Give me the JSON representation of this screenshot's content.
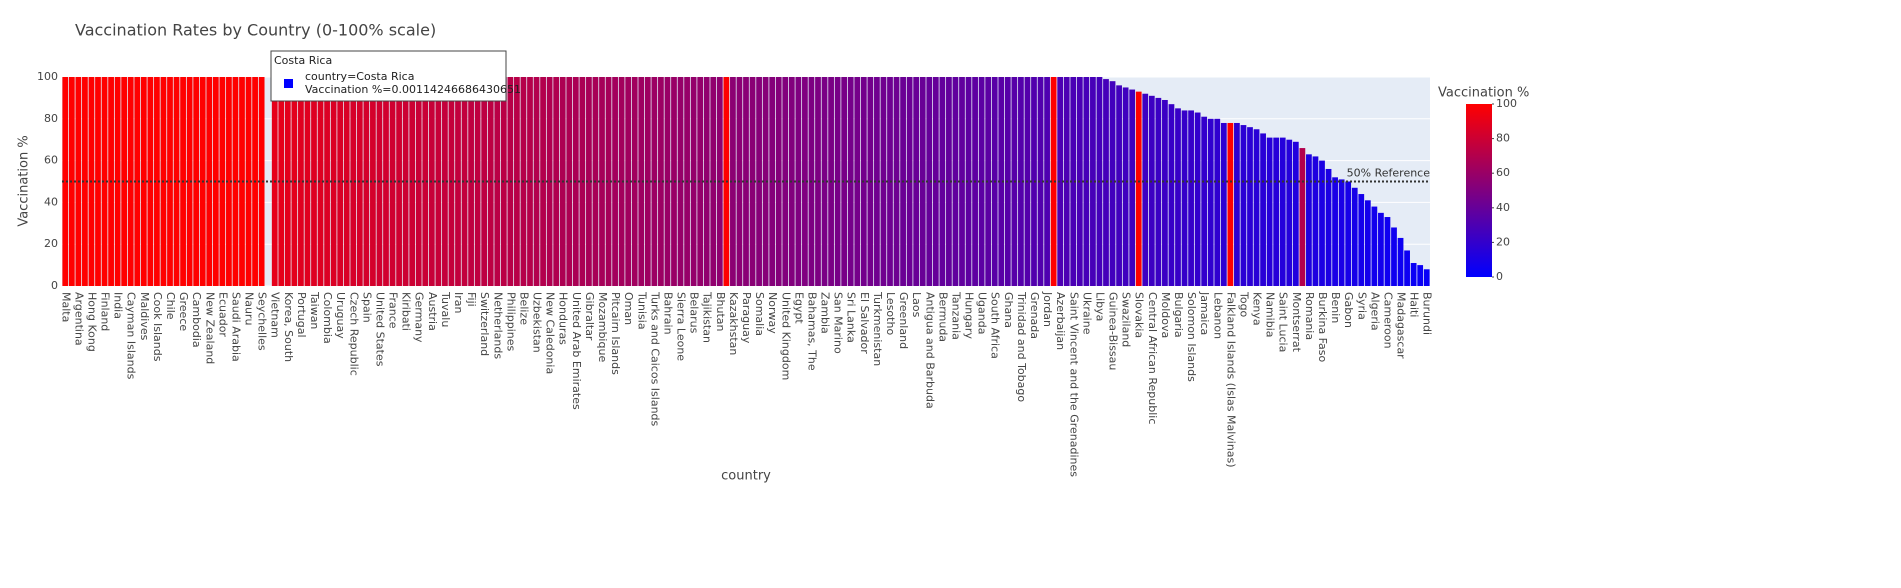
{
  "chart_data": {
    "type": "bar",
    "title": "Vaccination Rates by Country (0-100% scale)",
    "xlabel": "country",
    "ylabel": "Vaccination %",
    "categories": [
      "Malta",
      null,
      "Argentina",
      null,
      "Hong Kong",
      null,
      "Finland",
      null,
      "India",
      null,
      "Cayman Islands",
      null,
      "Maldives",
      null,
      "Cook Islands",
      null,
      "Chile",
      null,
      "Greece",
      null,
      "Cambodia",
      null,
      "New Zealand",
      null,
      "Ecuador",
      null,
      "Saudi Arabia",
      null,
      "Nauru",
      null,
      "Seychelles",
      null,
      "Vietnam",
      null,
      "Korea, South",
      null,
      "Portugal",
      null,
      "Taiwan",
      null,
      "Colombia",
      null,
      "Uruguay",
      null,
      "Czech Republic",
      null,
      "Spain",
      null,
      "United States",
      null,
      "France",
      null,
      "Kiribati",
      null,
      "Germany",
      null,
      "Austria",
      null,
      "Tuvalu",
      null,
      "Iran",
      null,
      "Fiji",
      null,
      "Switzerland",
      null,
      "Netherlands",
      null,
      "Philippines",
      null,
      "Belize",
      null,
      "Uzbekistan",
      null,
      "New Caledonia",
      null,
      "Honduras",
      null,
      "United Arab Emirates",
      null,
      "Gibraltar",
      null,
      "Mozambique",
      null,
      "Pitcairn Islands",
      null,
      "Oman",
      null,
      "Tunisia",
      null,
      "Turks and Caicos Islands",
      null,
      "Bahrain",
      null,
      "Sierra Leone",
      null,
      "Belarus",
      null,
      "Tajikistan",
      null,
      "Bhutan",
      null,
      "Kazakhstan",
      null,
      "Paraguay",
      null,
      "Somalia",
      null,
      "Norway",
      null,
      "United Kingdom",
      null,
      "Egypt",
      null,
      "Bahamas, The",
      null,
      "Zambia",
      null,
      "San Marino",
      null,
      "Sri Lanka",
      null,
      "El Salvador",
      null,
      "Turkmenistan",
      null,
      "Lesotho",
      null,
      "Greenland",
      null,
      "Laos",
      null,
      "Antigua and Barbuda",
      null,
      "Bermuda",
      null,
      "Tanzania",
      null,
      "Hungary",
      null,
      "Uganda",
      null,
      "South Africa",
      null,
      "Ghana",
      null,
      "Trinidad and Tobago",
      null,
      "Grenada",
      null,
      "Jordan",
      null,
      "Azerbaijan",
      null,
      "Saint Vincent and the Grenadines",
      null,
      "Ukraine",
      null,
      "Libya",
      null,
      "Guinea-Bissau",
      null,
      "Swaziland",
      null,
      "Slovakia",
      null,
      "Central African Republic",
      null,
      "Moldova",
      null,
      "Bulgaria",
      null,
      "Solomon Islands",
      null,
      "Jamaica",
      null,
      "Lebanon",
      null,
      "Falkland Islands (Islas Malvinas)",
      null,
      "Togo",
      null,
      "Kenya",
      null,
      "Namibia",
      null,
      "Saint Lucia",
      null,
      "Montserrat",
      null,
      "Romania",
      null,
      "Burkina Faso",
      null,
      "Benin",
      null,
      "Gabon",
      null,
      "Syria",
      null,
      "Algeria",
      null,
      "Cameroon",
      null,
      "Madagascar",
      null,
      "Haiti",
      null,
      "Burundi"
    ],
    "values": [
      100,
      100,
      100,
      100,
      100,
      100,
      100,
      100,
      100,
      100,
      100,
      100,
      100,
      100,
      100,
      100,
      100,
      100,
      100,
      100,
      100,
      100,
      100,
      100,
      100,
      100,
      100,
      100,
      100,
      100,
      100,
      0.00114246686430651,
      100,
      100,
      100,
      100,
      100,
      100,
      100,
      100,
      100,
      100,
      100,
      100,
      100,
      100,
      100,
      100,
      100,
      100,
      100,
      100,
      100,
      100,
      100,
      100,
      100,
      100,
      100,
      100,
      100,
      100,
      100,
      100,
      100,
      100,
      100,
      100,
      100,
      100,
      100,
      100,
      100,
      100,
      100,
      100,
      100,
      100,
      100,
      100,
      100,
      100,
      100,
      100,
      100,
      100,
      100,
      100,
      100,
      100,
      100,
      100,
      100,
      100,
      100,
      100,
      100,
      100,
      100,
      100,
      100,
      100,
      100,
      100,
      100,
      100,
      100,
      100,
      100,
      100,
      100,
      100,
      100,
      100,
      100,
      100,
      100,
      100,
      100,
      100,
      100,
      100,
      100,
      100,
      100,
      100,
      100,
      100,
      100,
      100,
      100,
      100,
      100,
      100,
      100,
      100,
      100,
      100,
      100,
      100,
      100,
      100,
      100,
      100,
      100,
      100,
      100,
      100,
      100,
      100,
      100,
      100,
      100,
      100,
      100,
      100,
      100,
      100,
      100,
      99,
      98,
      96,
      95,
      94,
      93,
      92,
      91,
      90,
      89,
      87,
      85,
      84,
      84,
      83,
      81,
      80,
      80,
      78,
      78,
      78,
      77,
      76,
      75,
      73,
      71,
      71,
      71,
      70,
      69,
      66,
      63,
      62,
      60,
      56,
      52,
      51,
      50,
      47,
      44,
      41,
      38,
      35,
      33,
      28,
      23,
      17,
      11,
      10,
      8
    ],
    "color_values": [
      100,
      100,
      100,
      100,
      100,
      100,
      100,
      100,
      100,
      100,
      100,
      100,
      100,
      100,
      100,
      100,
      100,
      100,
      100,
      100,
      100,
      100,
      100,
      100,
      100,
      100,
      100,
      100,
      100,
      100,
      100,
      0,
      90,
      90,
      89,
      89,
      88,
      88,
      87,
      87,
      86,
      86,
      85,
      85,
      84,
      84,
      83,
      83,
      82,
      82,
      81,
      81,
      80,
      80,
      79,
      79,
      78,
      78,
      77,
      77,
      76,
      76,
      75,
      75,
      74,
      74,
      73,
      73,
      72,
      72,
      71,
      71,
      70,
      70,
      69,
      69,
      68,
      68,
      67,
      67,
      66,
      66,
      65,
      65,
      64,
      64,
      63,
      63,
      62,
      62,
      61,
      61,
      60,
      60,
      59,
      59,
      58,
      58,
      57,
      57,
      56,
      100,
      55,
      55,
      54,
      54,
      53,
      53,
      52,
      52,
      51,
      51,
      50,
      50,
      49,
      49,
      48,
      48,
      47,
      47,
      46,
      46,
      45,
      45,
      44,
      44,
      43,
      43,
      42,
      42,
      41,
      41,
      40,
      40,
      39,
      39,
      38,
      38,
      37,
      37,
      36,
      36,
      35,
      35,
      34,
      34,
      33,
      33,
      32,
      32,
      31,
      100,
      30,
      30,
      29,
      29,
      28,
      28,
      27,
      27,
      26,
      26,
      25,
      25,
      100,
      24,
      24,
      23,
      23,
      22,
      22,
      21,
      21,
      20,
      20,
      19,
      19,
      18,
      100,
      18,
      17,
      17,
      16,
      16,
      15,
      15,
      14,
      14,
      13,
      70,
      12,
      12,
      11,
      11,
      10,
      10,
      9,
      9,
      8,
      8,
      7,
      7,
      6,
      6,
      5,
      5,
      4,
      4,
      3
    ],
    "colorscale": [
      "#0000ff",
      "#ff0000"
    ],
    "colorbar": {
      "title": "Vaccination %",
      "lim": [
        0,
        100
      ],
      "ticks": [
        0,
        20,
        40,
        60,
        80,
        100
      ]
    },
    "ylim": [
      0,
      100
    ],
    "yticks": [
      0,
      20,
      40,
      60,
      80,
      100
    ],
    "grid": true,
    "reference": {
      "value": 50,
      "label": "50% Reference"
    },
    "hover": {
      "title": "Costa Rica",
      "lines": [
        "country=Costa Rica",
        "Vaccination %=0.00114246686430651"
      ],
      "color": "#0000ff"
    }
  }
}
